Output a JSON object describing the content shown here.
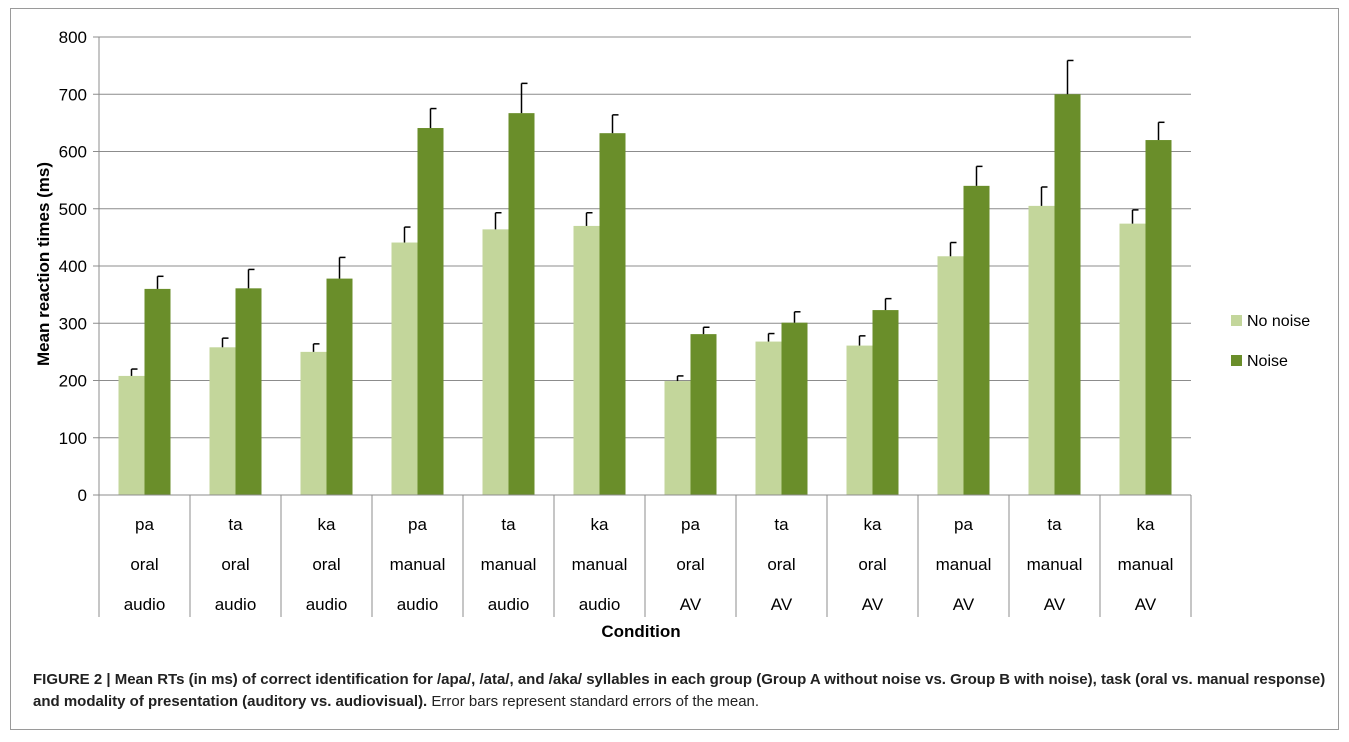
{
  "chart_data": {
    "type": "bar",
    "ylabel": "Mean reaction times (ms)",
    "xlabel": "Condition",
    "ylim": [
      0,
      800
    ],
    "yticks": [
      0,
      100,
      200,
      300,
      400,
      500,
      600,
      700,
      800
    ],
    "grid": true,
    "legend_position": "right",
    "categories": [
      [
        "pa",
        "oral",
        "audio"
      ],
      [
        "ta",
        "oral",
        "audio"
      ],
      [
        "ka",
        "oral",
        "audio"
      ],
      [
        "pa",
        "manual",
        "audio"
      ],
      [
        "ta",
        "manual",
        "audio"
      ],
      [
        "ka",
        "manual",
        "audio"
      ],
      [
        "pa",
        "oral",
        "AV"
      ],
      [
        "ta",
        "oral",
        "AV"
      ],
      [
        "ka",
        "oral",
        "AV"
      ],
      [
        "pa",
        "manual",
        "AV"
      ],
      [
        "ta",
        "manual",
        "AV"
      ],
      [
        "ka",
        "manual",
        "AV"
      ]
    ],
    "series": [
      {
        "name": "No noise",
        "color": "#c3d69b",
        "values": [
          208,
          258,
          250,
          441,
          464,
          470,
          199,
          268,
          261,
          417,
          505,
          474
        ],
        "errors": [
          12,
          16,
          14,
          27,
          29,
          23,
          9,
          14,
          17,
          24,
          33,
          24
        ]
      },
      {
        "name": "Noise",
        "color": "#6a8e2a",
        "values": [
          360,
          361,
          378,
          641,
          667,
          632,
          281,
          301,
          323,
          540,
          700,
          620
        ],
        "errors": [
          22,
          33,
          37,
          34,
          52,
          32,
          12,
          19,
          20,
          34,
          59,
          31
        ]
      }
    ]
  },
  "caption": {
    "bold_part": "FIGURE 2 | Mean RTs (in ms) of correct identification for /apa/, /ata/, and /aka/ syllables in each group (Group A without noise vs. Group B with noise), task (oral vs. manual response) and modality of presentation (auditory vs. audiovisual).",
    "normal_part": " Error bars represent standard errors of the mean."
  }
}
